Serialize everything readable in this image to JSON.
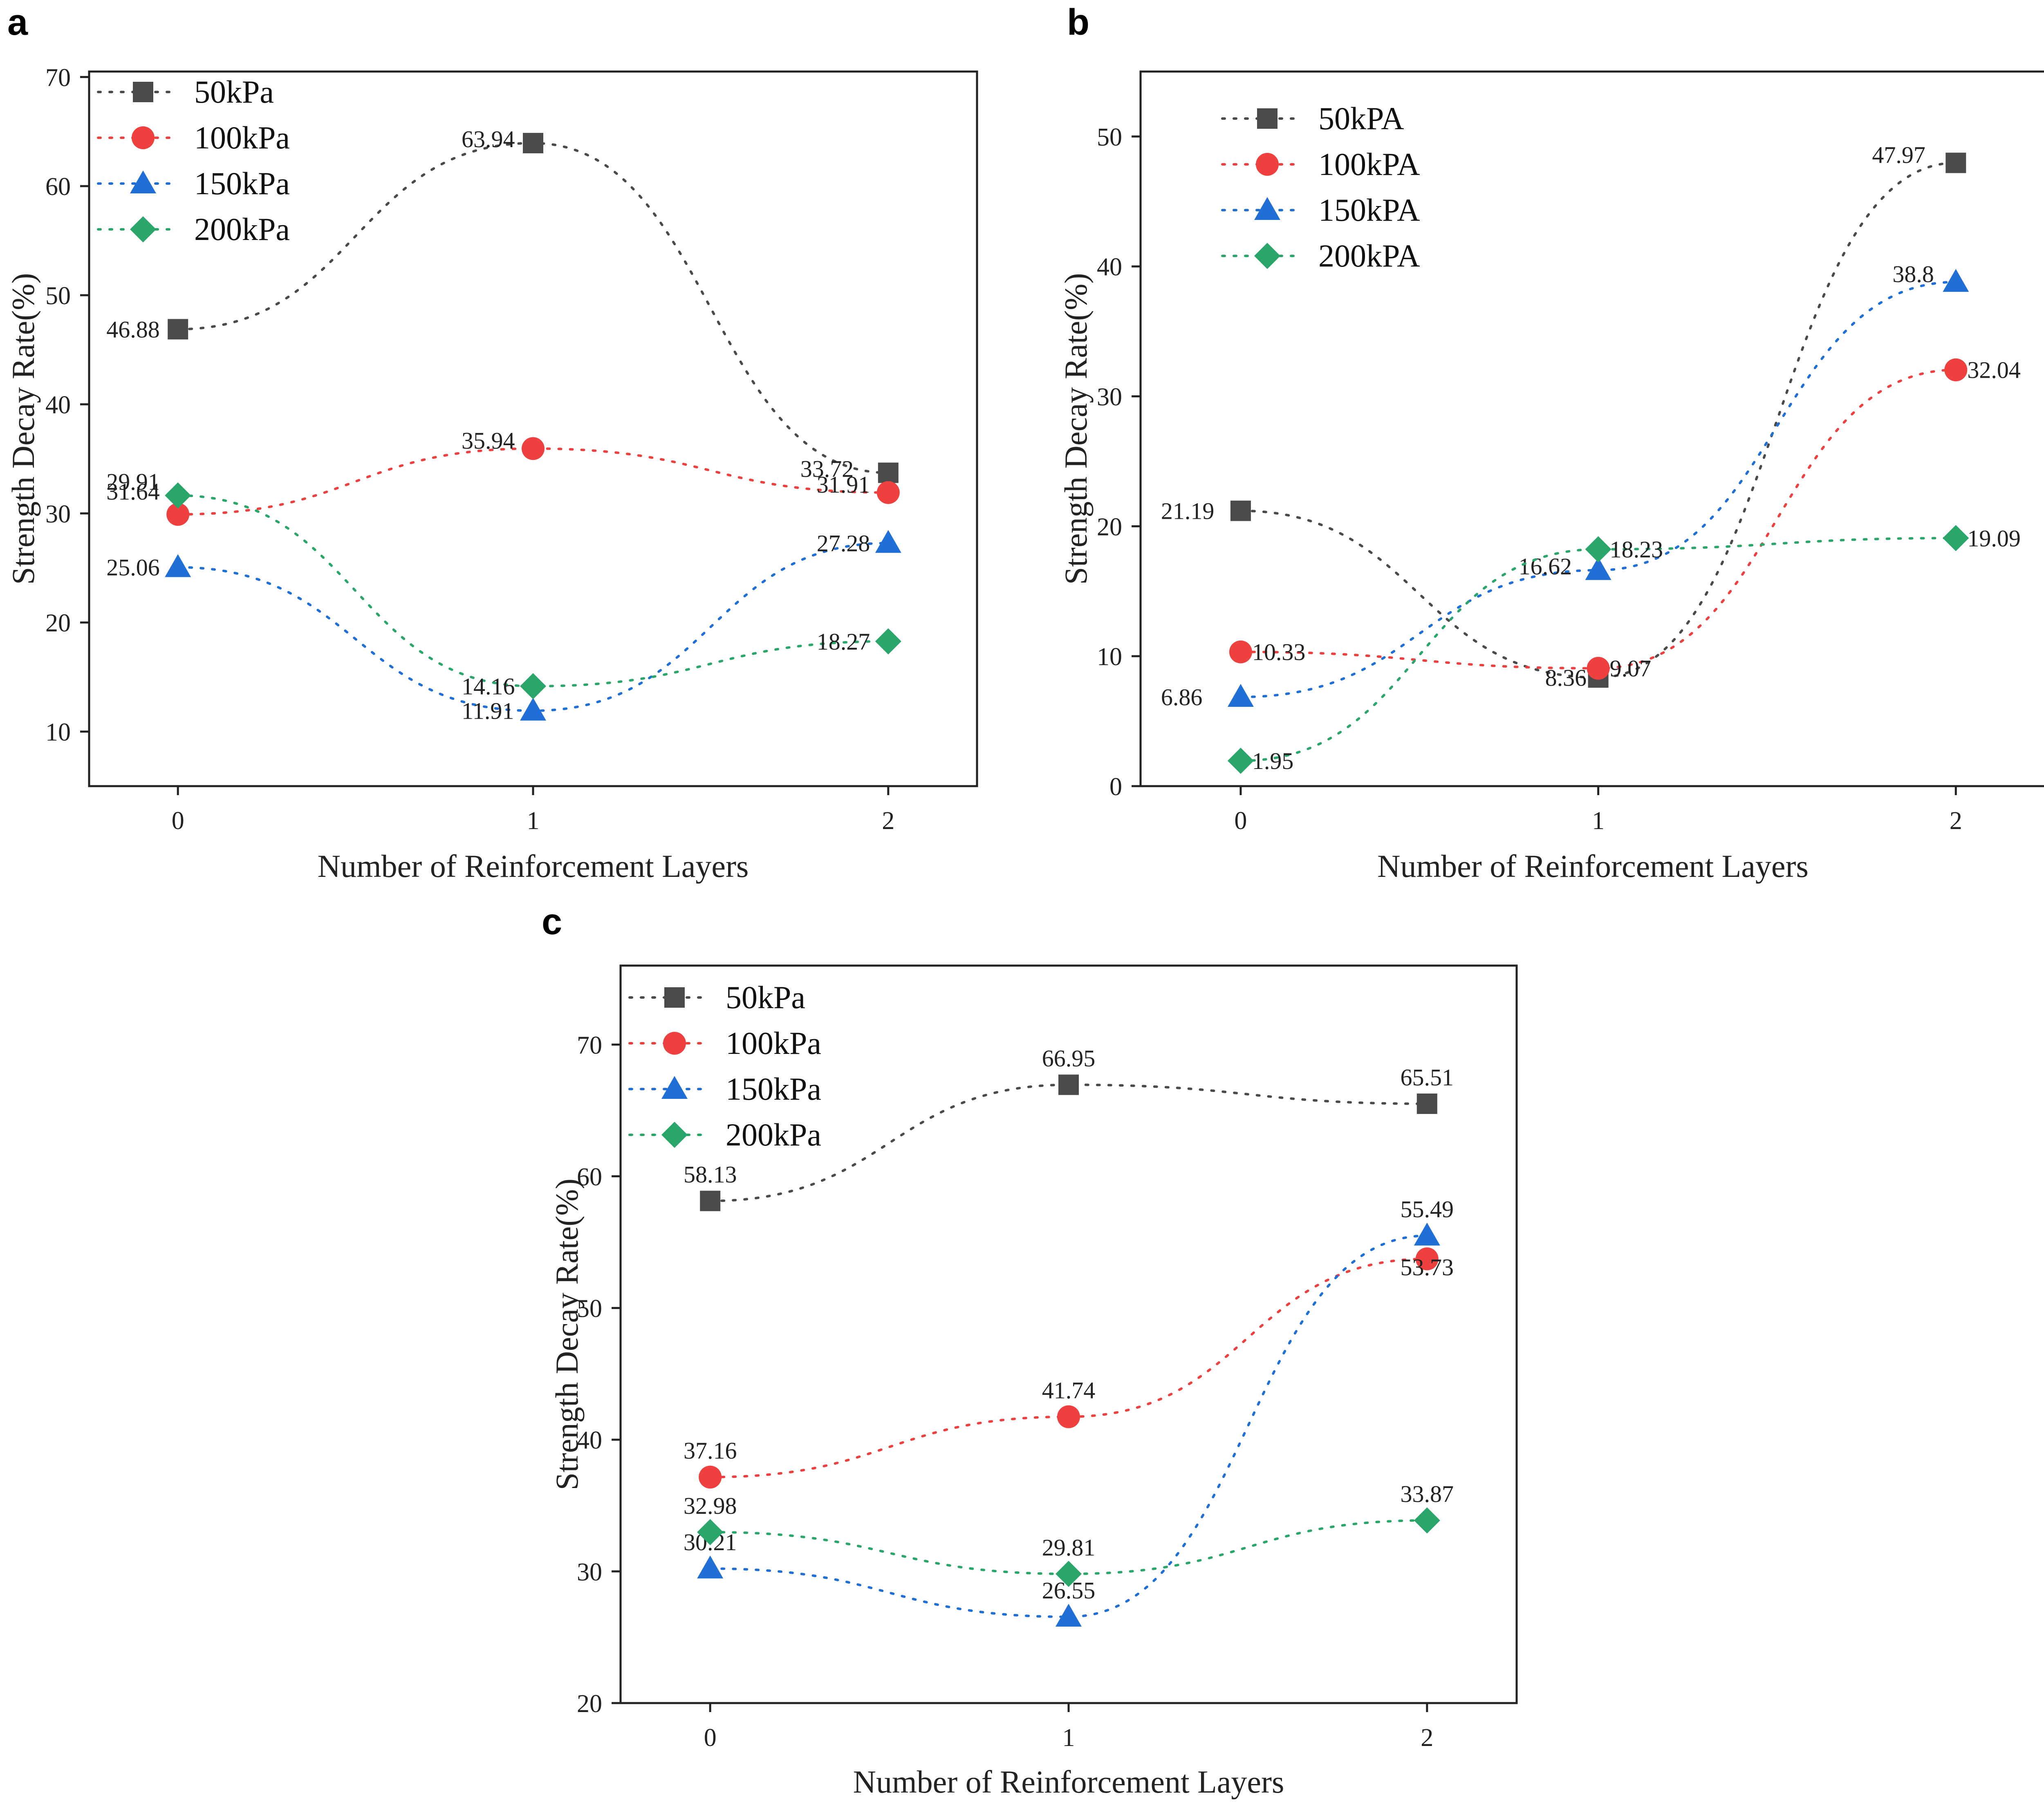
{
  "chart_data": [
    {
      "panel": "a",
      "type": "line",
      "x": [
        0,
        1,
        2
      ],
      "xlabel": "Number of Reinforcement Layers",
      "ylabel": "Strength Decay Rate(%)",
      "xticks": [
        "0",
        "1",
        "2"
      ],
      "yticks": [
        "10",
        "20",
        "30",
        "40",
        "50",
        "60",
        "70"
      ],
      "ylim": [
        5,
        70.5
      ],
      "xlim": [
        -0.25,
        2.25
      ],
      "legend_position": "top-left",
      "series": [
        {
          "name": "50kPa",
          "values": [
            46.88,
            63.94,
            33.72
          ],
          "labels": [
            "46.88",
            "63.94",
            "33.72"
          ]
        },
        {
          "name": "100kPa",
          "values": [
            29.91,
            35.94,
            31.91
          ],
          "labels": [
            "29.91",
            "35.94",
            "31.91"
          ]
        },
        {
          "name": "150kPa",
          "values": [
            25.06,
            11.91,
            27.28
          ],
          "labels": [
            "25.06",
            "11.91",
            "27.28"
          ]
        },
        {
          "name": "200kPa",
          "values": [
            31.64,
            14.16,
            18.27
          ],
          "labels": [
            "31.64",
            "14.16",
            "18.27"
          ]
        }
      ]
    },
    {
      "panel": "b",
      "type": "line",
      "x": [
        0,
        1,
        2
      ],
      "xlabel": "Number of Reinforcement Layers",
      "ylabel": "Strength Decay Rate(%)",
      "xticks": [
        "0",
        "1",
        "2"
      ],
      "yticks": [
        "0",
        "10",
        "20",
        "30",
        "40",
        "50"
      ],
      "ylim": [
        0,
        55
      ],
      "xlim": [
        -0.28,
        2.25
      ],
      "legend_position": "top-left",
      "series": [
        {
          "name": "50kPA",
          "values": [
            21.19,
            8.36,
            47.97
          ],
          "labels": [
            "21.19",
            "8.36",
            "47.97"
          ]
        },
        {
          "name": "100kPA",
          "values": [
            10.33,
            9.07,
            32.04
          ],
          "labels": [
            "10.33",
            "9.07",
            "32.04"
          ]
        },
        {
          "name": "150kPA",
          "values": [
            6.86,
            16.62,
            38.8
          ],
          "labels": [
            "6.86",
            "16.62",
            "38.8"
          ]
        },
        {
          "name": "200kPA",
          "values": [
            1.95,
            18.23,
            19.09
          ],
          "labels": [
            "1.95",
            "18.23",
            "19.09"
          ]
        }
      ]
    },
    {
      "panel": "c",
      "type": "line",
      "x": [
        0,
        1,
        2
      ],
      "xlabel": "Number of Reinforcement Layers",
      "ylabel": "Strength Decay Rate(%)",
      "xticks": [
        "0",
        "1",
        "2"
      ],
      "yticks": [
        "20",
        "30",
        "40",
        "50",
        "60",
        "70"
      ],
      "ylim": [
        20,
        76
      ],
      "xlim": [
        -0.25,
        2.25
      ],
      "legend_position": "top-left",
      "series": [
        {
          "name": "50kPa",
          "values": [
            58.13,
            66.95,
            65.51
          ],
          "labels": [
            "58.13",
            "66.95",
            "65.51"
          ]
        },
        {
          "name": "100kPa",
          "values": [
            37.16,
            41.74,
            53.73
          ],
          "labels": [
            "37.16",
            "41.74",
            "53.73"
          ]
        },
        {
          "name": "150kPa",
          "values": [
            30.21,
            26.55,
            55.49
          ],
          "labels": [
            "30.21",
            "26.55",
            "55.49"
          ]
        },
        {
          "name": "200kPa",
          "values": [
            32.98,
            29.81,
            33.87
          ],
          "labels": [
            "32.98",
            "29.81",
            "33.87"
          ]
        }
      ]
    }
  ],
  "colors": {
    "series": [
      "#4a4a4a",
      "#ef4040",
      "#1f6fd6",
      "#2aa66a"
    ],
    "markers": [
      "square",
      "circle",
      "triangle",
      "diamond"
    ],
    "axis": "#222222"
  }
}
